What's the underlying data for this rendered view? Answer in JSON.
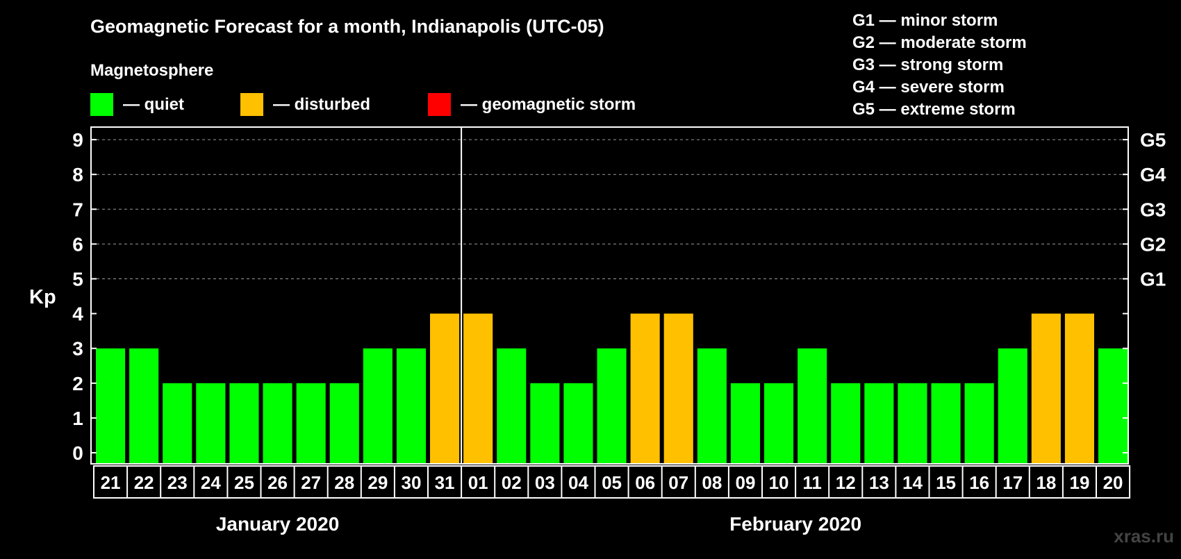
{
  "chart_data": {
    "type": "bar",
    "title": "Geomagnetic Forecast for a month, Indianapolis (UTC-05)",
    "ylabel": "Kp",
    "ylim": [
      0,
      9
    ],
    "yticks": [
      "0",
      "1",
      "2",
      "3",
      "4",
      "5",
      "6",
      "7",
      "8",
      "9"
    ],
    "right_axis_labels": [
      {
        "kp": 5,
        "label": "G1"
      },
      {
        "kp": 6,
        "label": "G2"
      },
      {
        "kp": 7,
        "label": "G3"
      },
      {
        "kp": 8,
        "label": "G4"
      },
      {
        "kp": 9,
        "label": "G5"
      }
    ],
    "categories": [
      "21",
      "22",
      "23",
      "24",
      "25",
      "26",
      "27",
      "28",
      "29",
      "30",
      "31",
      "01",
      "02",
      "03",
      "04",
      "05",
      "06",
      "07",
      "08",
      "09",
      "10",
      "11",
      "12",
      "13",
      "14",
      "15",
      "16",
      "17",
      "18",
      "19",
      "20"
    ],
    "values": [
      3,
      3,
      2,
      2,
      2,
      2,
      2,
      2,
      3,
      3,
      4,
      4,
      3,
      2,
      2,
      3,
      4,
      4,
      3,
      2,
      2,
      3,
      2,
      2,
      2,
      2,
      2,
      3,
      4,
      4,
      3
    ],
    "months": [
      {
        "label": "January 2020",
        "days": 11
      },
      {
        "label": "February 2020",
        "days": 20
      }
    ],
    "legend": {
      "title": "Magnetosphere",
      "items": [
        {
          "label": "— quiet",
          "color": "#00ff00"
        },
        {
          "label": "— disturbed",
          "color": "#ffc000"
        },
        {
          "label": "— geomagnetic storm",
          "color": "#ff0000"
        }
      ]
    },
    "storm_levels": [
      "G1 — minor storm",
      "G2 — moderate storm",
      "G3 — strong storm",
      "G4 — severe storm",
      "G5 — extreme storm"
    ],
    "grid": true
  },
  "watermark": "xras.ru",
  "colors": {
    "quiet": "#00ff00",
    "disturbed": "#ffc000",
    "storm": "#ff0000",
    "background": "#000000",
    "foreground": "#ffffff"
  }
}
